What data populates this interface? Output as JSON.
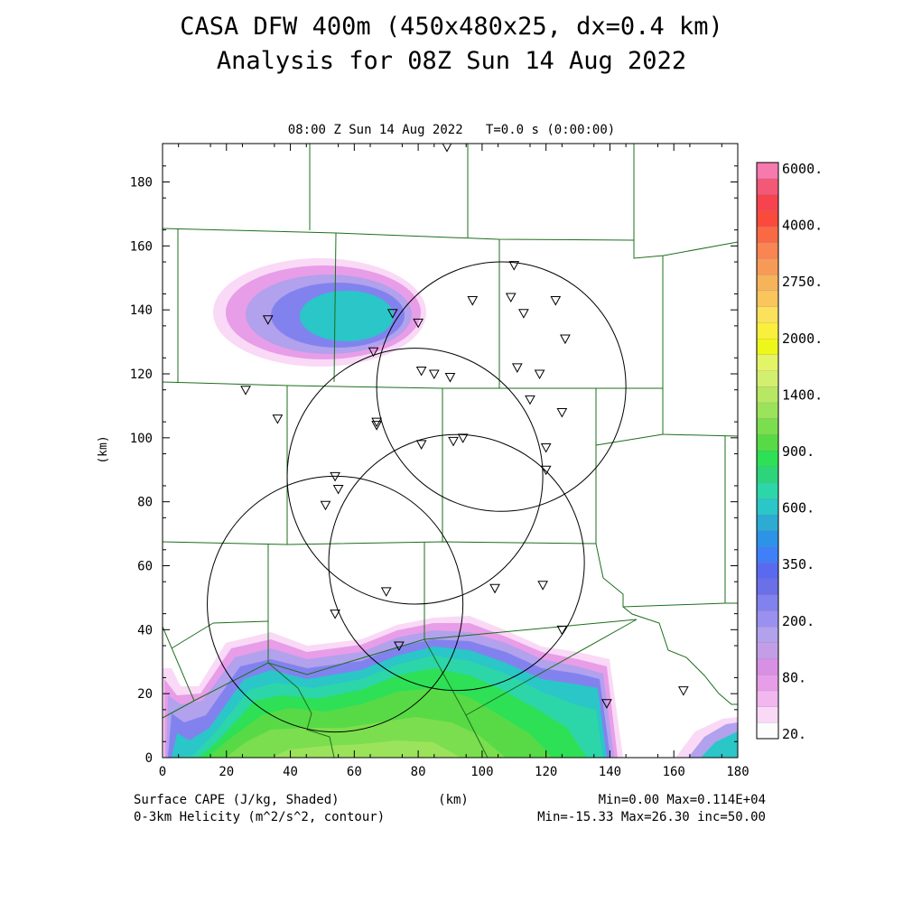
{
  "title": {
    "line1": "CASA DFW 400m (450x480x25, dx=0.4 km)",
    "line2": "Analysis for 08Z Sun 14 Aug 2022"
  },
  "subtitle": "08:00 Z Sun 14 Aug 2022   T=0.0 s (0:00:00)",
  "axes": {
    "x_label": "(km)",
    "y_label": "(km)",
    "xlim": [
      0,
      180
    ],
    "ylim": [
      0,
      192
    ],
    "x_ticks": [
      "0",
      "20",
      "40",
      "60",
      "80",
      "100",
      "120",
      "140",
      "160",
      "180"
    ],
    "y_ticks": [
      "0",
      "20",
      "40",
      "60",
      "80",
      "100",
      "120",
      "140",
      "160",
      "180"
    ]
  },
  "footer": {
    "left1": "Surface CAPE (J/kg, Shaded)",
    "left2": "0-3km Helicity (m^2/s^2, contour)",
    "units": "(km)",
    "right1": "Min=0.00 Max=0.114E+04",
    "right2": "Min=-15.33 Max=26.30 inc=50.00"
  },
  "colorbar": {
    "labels": [
      "6000.",
      "4000.",
      "2750.",
      "2000.",
      "1400.",
      "900.",
      "600.",
      "350.",
      "200.",
      "80.",
      "20."
    ],
    "colors": [
      "#fbfcfb",
      "#f9d9f6",
      "#f2b7ef",
      "#e89de8",
      "#d790e4",
      "#c39ee6",
      "#b2a1ec",
      "#9a90ef",
      "#8282ef",
      "#6b6fe8",
      "#5a6af0",
      "#3f80f8",
      "#2d93e6",
      "#2cabd3",
      "#2ac6c8",
      "#2cd6a8",
      "#2cd57a",
      "#2ee055",
      "#58da46",
      "#7bde4e",
      "#9be35b",
      "#b8e863",
      "#d3ef6f",
      "#e4f467",
      "#eef71a",
      "#fbef3d",
      "#fbe15c",
      "#f9c55c",
      "#f7b35a",
      "#f79a57",
      "#f88552",
      "#f96a44",
      "#f94a3b",
      "#f6434e",
      "#f35877",
      "#f67aae"
    ],
    "levels": 36
  },
  "map": {
    "overlay_color": "#1d6e1d",
    "contour_color": "#000000",
    "radar_circles": [
      {
        "cx": 106,
        "cy": 116,
        "r": 39
      },
      {
        "cx": 79,
        "cy": 88,
        "r": 40
      },
      {
        "cx": 92,
        "cy": 61,
        "r": 40
      },
      {
        "cx": 54,
        "cy": 48,
        "r": 40
      }
    ],
    "stations": [
      [
        89,
        191
      ],
      [
        110,
        154
      ],
      [
        97,
        143
      ],
      [
        109,
        144
      ],
      [
        113,
        139
      ],
      [
        123,
        143
      ],
      [
        126,
        131
      ],
      [
        33,
        137
      ],
      [
        72,
        139
      ],
      [
        80,
        136
      ],
      [
        66,
        127
      ],
      [
        81,
        121
      ],
      [
        85,
        120
      ],
      [
        90,
        119
      ],
      [
        111,
        122
      ],
      [
        118,
        120
      ],
      [
        26,
        115
      ],
      [
        36,
        106
      ],
      [
        115,
        112
      ],
      [
        125,
        108
      ],
      [
        67,
        105
      ],
      [
        67,
        104
      ],
      [
        81,
        98
      ],
      [
        91,
        99
      ],
      [
        94,
        100
      ],
      [
        120,
        97
      ],
      [
        120,
        90
      ],
      [
        54,
        88
      ],
      [
        55,
        84
      ],
      [
        51,
        79
      ],
      [
        70,
        52
      ],
      [
        104,
        53
      ],
      [
        119,
        54
      ],
      [
        54,
        45
      ],
      [
        74,
        35
      ],
      [
        125,
        40
      ],
      [
        139,
        17
      ],
      [
        163,
        21
      ]
    ]
  },
  "chart_data": {
    "type": "heatmap",
    "field": "Surface CAPE (J/kg, Shaded)",
    "contour_field": "0-3km Helicity (m^2/s^2, contour)",
    "x_label": "(km)",
    "y_label": "(km)",
    "xlim": [
      0,
      180
    ],
    "ylim": [
      0,
      192
    ],
    "cape_min": 0.0,
    "cape_max": 1140,
    "helicity_min": -15.33,
    "helicity_max": 26.3,
    "helicity_inc": 50.0,
    "cape_levels": [
      20,
      80,
      200,
      350,
      600,
      900,
      1400,
      2000,
      2750,
      4000,
      6000
    ]
  }
}
